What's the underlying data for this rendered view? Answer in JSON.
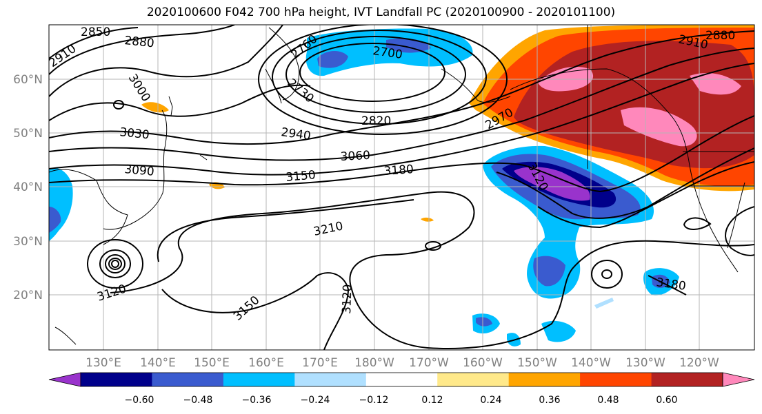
{
  "title": "2020100600 F042 700 hPa height, IVT Landfall PC (2020100900 - 2020101100)",
  "lat_labels": [
    "60°N",
    "50°N",
    "40°N",
    "30°N",
    "20°N"
  ],
  "lon_labels": [
    "130°E",
    "140°E",
    "150°E",
    "160°E",
    "170°E",
    "180°W",
    "170°W",
    "160°W",
    "150°W",
    "140°W",
    "130°W",
    "120°W"
  ],
  "contour_labels": [
    "2850",
    "2880",
    "2910",
    "3000",
    "2760",
    "2700",
    "2730",
    "2820",
    "2940",
    "3030",
    "3060",
    "3090",
    "3150",
    "3180",
    "3120",
    "2970",
    "2910",
    "2880",
    "3210",
    "3120",
    "3150",
    "3120",
    "3180"
  ],
  "colorbar": {
    "ticks": [
      "−0.60",
      "−0.48",
      "−0.36",
      "−0.24",
      "−0.12",
      "0.12",
      "0.24",
      "0.36",
      "0.48",
      "0.60"
    ],
    "colors": [
      "#9933cc",
      "#00008b",
      "#3a5bcf",
      "#00bfff",
      "#b0e0ff",
      "#ffffff",
      "#ffe98a",
      "#ffa500",
      "#ff4500",
      "#b22222",
      "#ff88bb"
    ]
  }
}
